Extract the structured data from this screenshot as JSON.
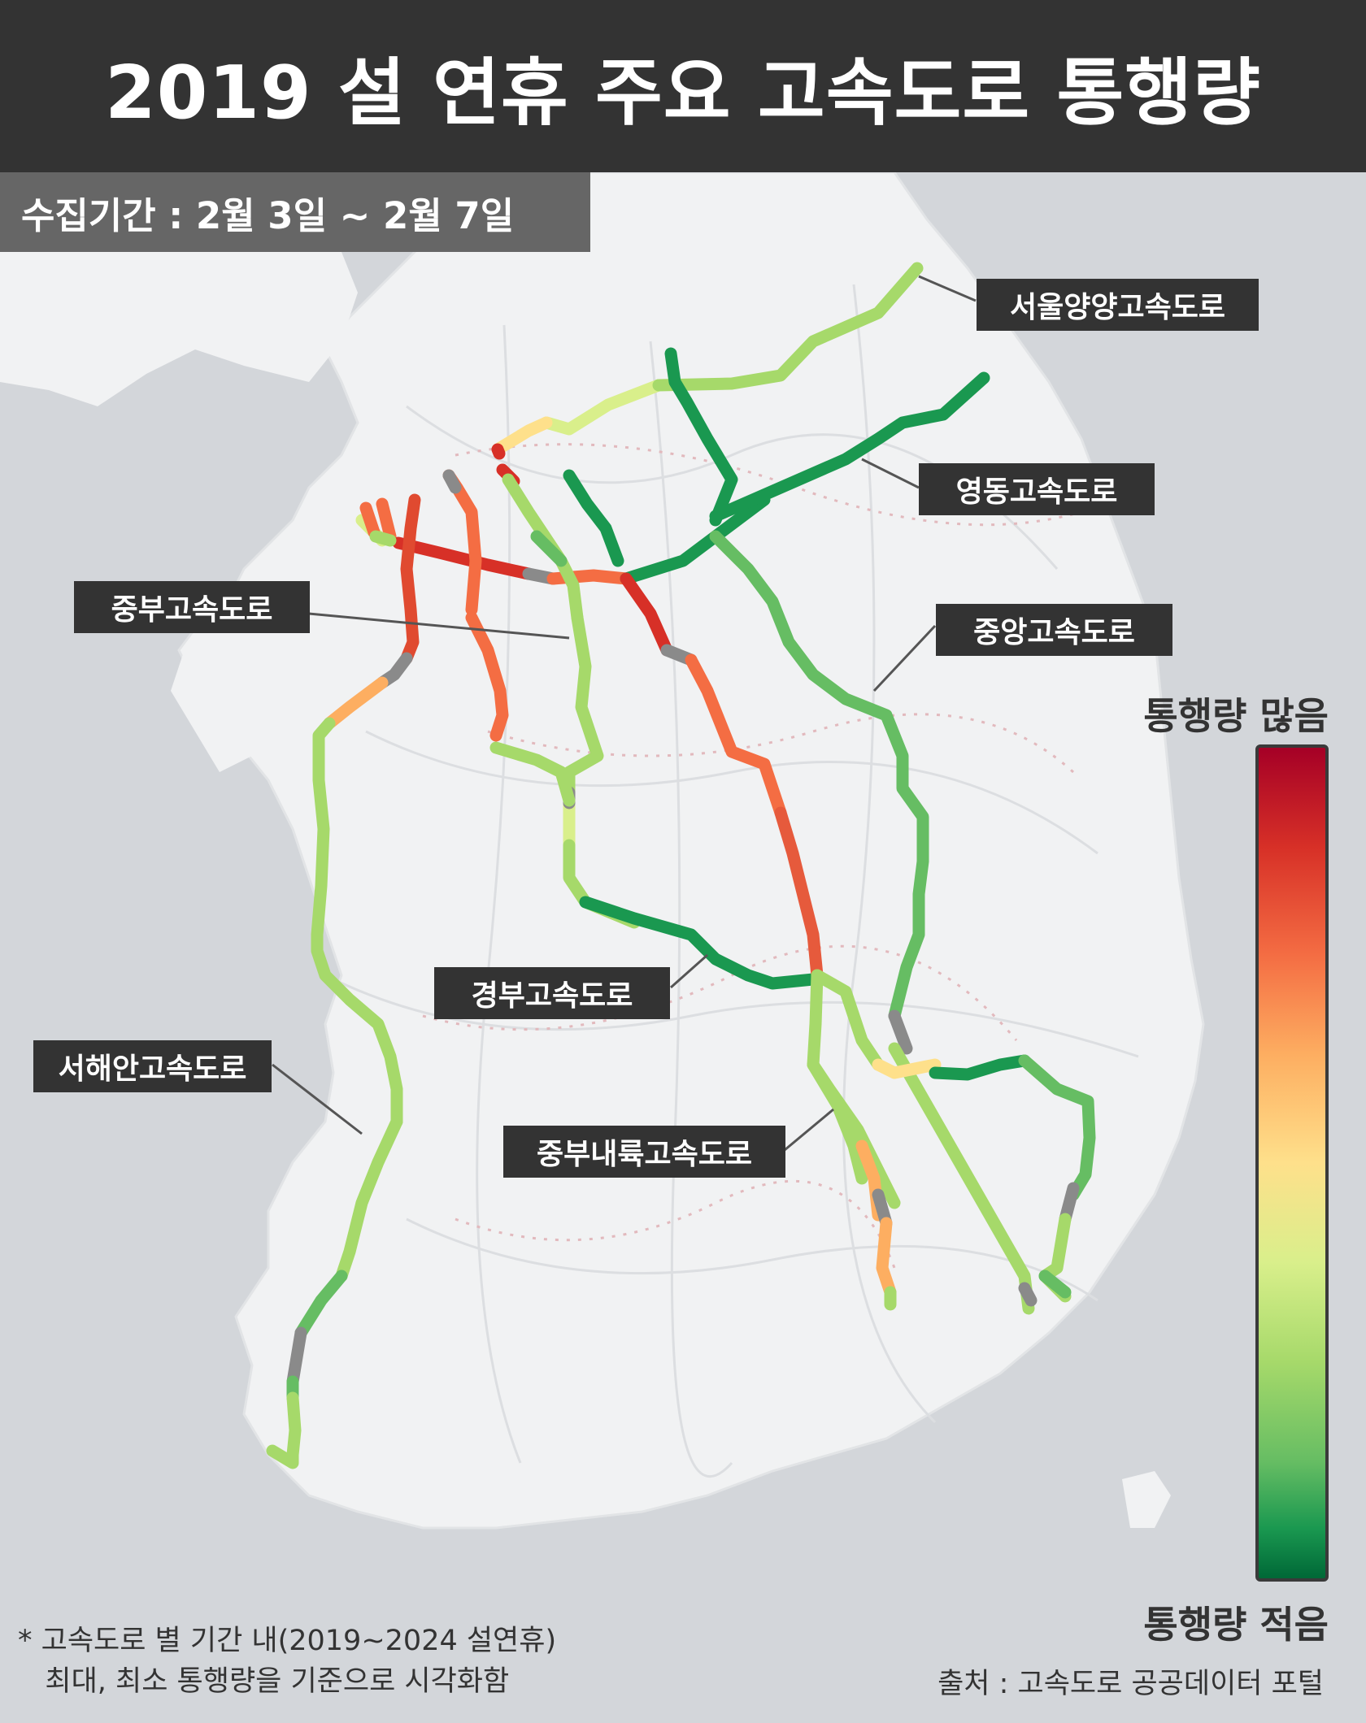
{
  "title": "2019 설 연휴 주요 고속도로 통행량",
  "period": "수집기간 : 2월 3일 ~ 2월 7일",
  "legend": {
    "high_label": "통행량 많음",
    "low_label": "통행량 적음",
    "colors": [
      "#a50026",
      "#d73027",
      "#f46d43",
      "#fdae61",
      "#fee08b",
      "#d9ef8b",
      "#a6d96a",
      "#66bd63",
      "#1a9850",
      "#006837"
    ],
    "no_data_color": "#8a8a8a"
  },
  "highways": [
    {
      "id": "seoul-yangyang",
      "name": "서울양양고속도로"
    },
    {
      "id": "yeongdong",
      "name": "영동고속도로"
    },
    {
      "id": "jungbu",
      "name": "중부고속도로"
    },
    {
      "id": "jungang",
      "name": "중앙고속도로"
    },
    {
      "id": "gyeongbu",
      "name": "경부고속도로"
    },
    {
      "id": "seohaean",
      "name": "서해안고속도로"
    },
    {
      "id": "jungbu-naeryuk",
      "name": "중부내륙고속도로"
    }
  ],
  "footnote": {
    "line1": "* 고속도로 별 기간 내(2019~2024 설연휴)",
    "line2": "   최대, 최소 통행량을 기준으로 시각화함"
  },
  "source": "출처 : 고속도로 공공데이터 포털"
}
